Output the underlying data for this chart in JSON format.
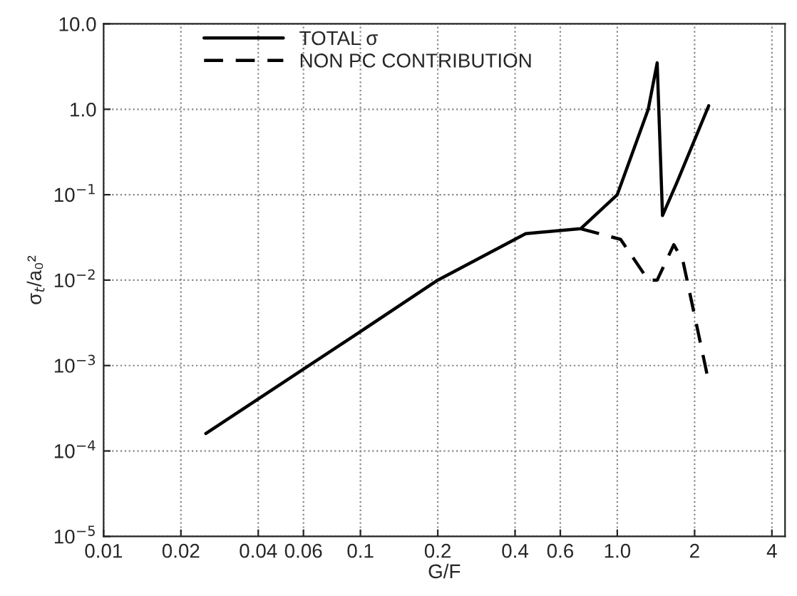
{
  "chart_data": {
    "type": "line",
    "xlabel": "G/F",
    "ylabel": "σ$_{t}$/a₀²",
    "log": "xy",
    "series": [
      {
        "name": "TOTAL σ",
        "color": "#000000",
        "line_style": "solid",
        "x": [
          0.025,
          0.1,
          0.2,
          0.44,
          0.72,
          1.0,
          1.32,
          1.43,
          1.5,
          1.7,
          2.27
        ],
        "values": [
          0.00016,
          0.0025,
          0.01,
          0.035,
          0.04,
          0.1,
          1.0,
          3.5,
          0.057,
          0.135,
          1.1
        ]
      },
      {
        "name": "NON PC CONTRIBUTION",
        "color": "#000000",
        "line_style": "dashed",
        "x": [
          0.72,
          1.03,
          1.32,
          1.43,
          1.66,
          1.8,
          2.2,
          2.24
        ],
        "values": [
          0.04,
          0.03,
          0.01,
          0.01,
          0.026,
          0.017,
          0.001,
          0.00077
        ]
      }
    ],
    "xlim": [
      0.01,
      4.5
    ],
    "ylim": [
      1e-05,
      10
    ],
    "xticks": [
      0.01,
      0.02,
      0.04,
      0.06,
      0.1,
      0.2,
      0.4,
      0.6,
      {
        "value": 1,
        "label": "1.0"
      },
      2,
      4
    ],
    "yticks": [
      {
        "value": 1e-05,
        "label": "10$^{−5}$"
      },
      {
        "value": 0.0001,
        "label": "10$^{−4}$"
      },
      {
        "value": 0.001,
        "label": "10$^{−3}$"
      },
      {
        "value": 0.01,
        "label": "10$^{−2}$"
      },
      {
        "value": 0.1,
        "label": "10$^{−1}$"
      },
      {
        "value": 1,
        "label": "1.0"
      },
      {
        "value": 10,
        "label": "10.0"
      }
    ],
    "grid": true,
    "legend": "top left"
  }
}
